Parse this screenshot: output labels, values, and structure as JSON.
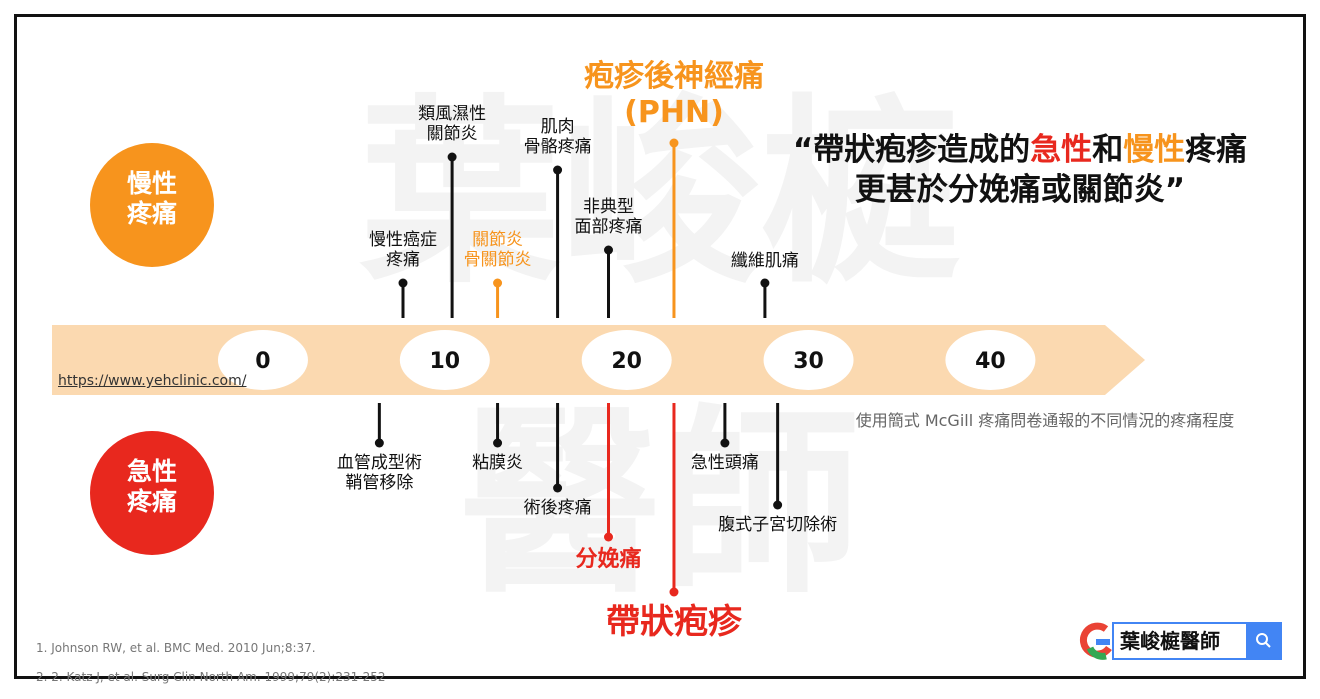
{
  "chart_data": {
    "type": "lollipop",
    "watermark": "葉峻榳\n醫師",
    "quote": [
      {
        "text": "“帶狀疱疹造成的",
        "color": "#111111"
      },
      {
        "text": "急性",
        "color": "#e8281e"
      },
      {
        "text": "和",
        "color": "#111111"
      },
      {
        "text": "慢性",
        "color": "#f7941d"
      },
      {
        "text": "疼痛\n更甚於分娩痛或關節炎”",
        "color": "#111111"
      }
    ],
    "subtitle": "使用簡式 McGill 疼痛問卷通報的不同情況的疼痛程度",
    "source_url": "https://www.yehclinic.com/",
    "references": [
      "1.   Johnson RW, et al. BMC Med. 2010 Jun;8:37.",
      "2.   2. Katz J, et al. Surg Clin North Am. 1999;79(2):231-252"
    ],
    "search_text": "葉峻榳醫師",
    "xlim": [
      -11.6,
      48.5
    ],
    "xticks": [
      0,
      10,
      20,
      30,
      40
    ],
    "axis_color": "#fbd9b0",
    "series": [
      {
        "name": "慢性\n疼痛",
        "color": "#f7941d",
        "side": "above",
        "categories": [
          "慢性癌症\n疼痛",
          "類風濕性\n關節炎",
          "關節炎\n骨關節炎",
          "肌肉\n骨骼疼痛",
          "非典型\n面部疼痛",
          "疱疹後神經痛\n(PHN)",
          "纖維肌痛"
        ],
        "values": [
          7.7,
          10.4,
          12.9,
          16.2,
          19.0,
          22.6,
          27.6
        ],
        "colors": [
          "#111111",
          "#111111",
          "#f7941d",
          "#111111",
          "#111111",
          "#f7941d",
          "#111111"
        ]
      },
      {
        "name": "急性\n疼痛",
        "color": "#e8281e",
        "side": "below",
        "categories": [
          "血管成型術\n鞘管移除",
          "粘膜炎",
          "術後疼痛",
          "分娩痛",
          "帶狀疱疹",
          "急性頭痛",
          "腹式子宮切除術"
        ],
        "values": [
          6.4,
          12.9,
          16.2,
          19.0,
          22.6,
          25.4,
          28.3
        ],
        "colors": [
          "#111111",
          "#111111",
          "#111111",
          "#e8281e",
          "#e8281e",
          "#111111",
          "#111111"
        ]
      }
    ]
  }
}
